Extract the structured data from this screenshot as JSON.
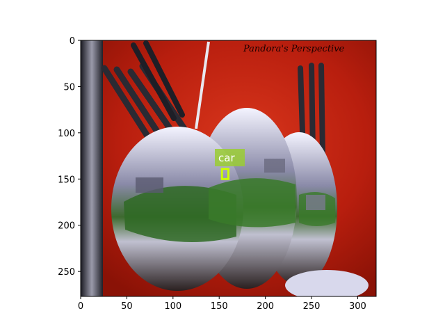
{
  "figure": {
    "watermark_text": "Pandora's Perspective",
    "detection": {
      "label": "car",
      "bbox_data": [
        153,
        139,
        160,
        150
      ],
      "label_box_color": "#9acd32",
      "box_color": "#ccff00"
    },
    "x_axis": {
      "ticks": [
        0,
        50,
        100,
        150,
        200,
        250,
        300
      ],
      "range": [
        0,
        320
      ]
    },
    "y_axis": {
      "ticks": [
        0,
        50,
        100,
        150,
        200,
        250
      ],
      "range": [
        0,
        277
      ]
    },
    "colors": {
      "background_red": "#c52010",
      "spoon_light": "#e8e8f0",
      "foliage": "#3a7a2a"
    }
  }
}
